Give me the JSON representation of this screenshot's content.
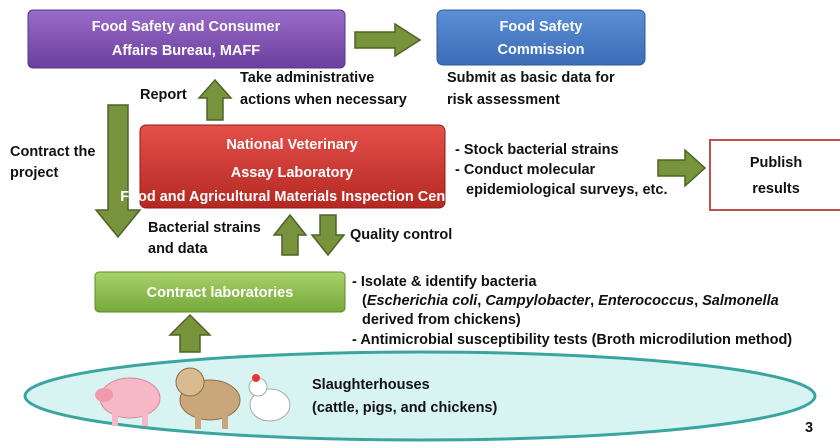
{
  "nodes": {
    "bureau": {
      "lines": [
        "Food Safety and Consumer",
        "Affairs Bureau, MAFF"
      ]
    },
    "commission": {
      "lines": [
        "Food Safety",
        "Commission"
      ]
    },
    "lab": {
      "lines": [
        "National Veterinary",
        "Assay Laboratory"
      ],
      "sub": "Food and Agricultural Materials Inspection Center"
    },
    "publish": {
      "lines": [
        "Publish",
        "results"
      ]
    },
    "contract_labs": {
      "label": "Contract laboratories"
    },
    "slaughterhouses": {
      "lines": [
        "Slaughterhouses",
        "(cattle, pigs, and chickens)"
      ]
    }
  },
  "labels": {
    "take_action": [
      "Take administrative",
      "actions when necessary"
    ],
    "submit": [
      "Submit as basic data for",
      "risk assessment"
    ],
    "report": "Report",
    "contract_project": [
      "Contract the",
      "project"
    ],
    "lab_tasks": [
      "- Stock bacterial strains",
      "- Conduct molecular",
      "epidemiological surveys, etc."
    ],
    "strains_data": [
      "Bacterial strains",
      "and data"
    ],
    "quality_control": "Quality control",
    "contract_tasks": {
      "line1": "- Isolate & identify bacteria",
      "line2": [
        "(",
        "Escherichia coli",
        ", ",
        "Campylobacter",
        ", ",
        "Enterococcus",
        ", ",
        "Salmonella"
      ],
      "line3": "derived from chickens)",
      "line4": "- Antimicrobial susceptibility tests (Broth microdilution  method)"
    },
    "page_number": "3"
  }
}
